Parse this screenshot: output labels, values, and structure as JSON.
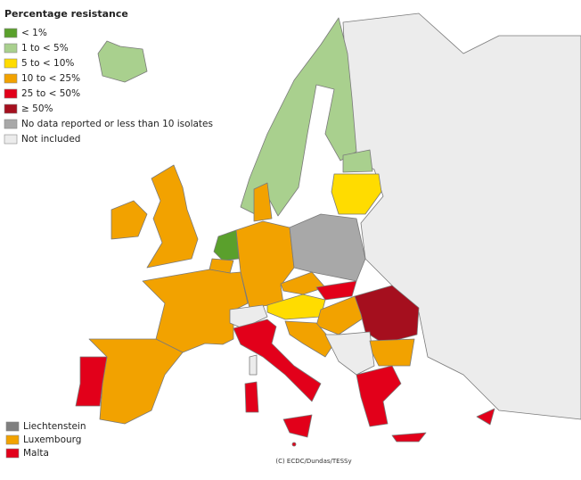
{
  "legend": {
    "title": "Percentage resistance",
    "items": [
      {
        "label": "< 1%",
        "color": "#5aa02c"
      },
      {
        "label": "1 to < 5%",
        "color": "#a9d08e"
      },
      {
        "label": "5 to < 10%",
        "color": "#ffdc00"
      },
      {
        "label": "10 to < 25%",
        "color": "#f2a200"
      },
      {
        "label": "25 to < 50%",
        "color": "#e2001a"
      },
      {
        "label": "≥ 50%",
        "color": "#a50f1e"
      },
      {
        "label": "No data reported or less than 10 isolates",
        "color": "#a8a8a8"
      },
      {
        "label": "Not included",
        "color": "#ececec"
      }
    ]
  },
  "small_countries": [
    {
      "label": "Liechtenstein",
      "color": "#7f7f7f"
    },
    {
      "label": "Luxembourg",
      "color": "#f2a200"
    },
    {
      "label": "Malta",
      "color": "#e2001a"
    }
  ],
  "credit": "(C) ECDC/Dundas/TESSy"
}
